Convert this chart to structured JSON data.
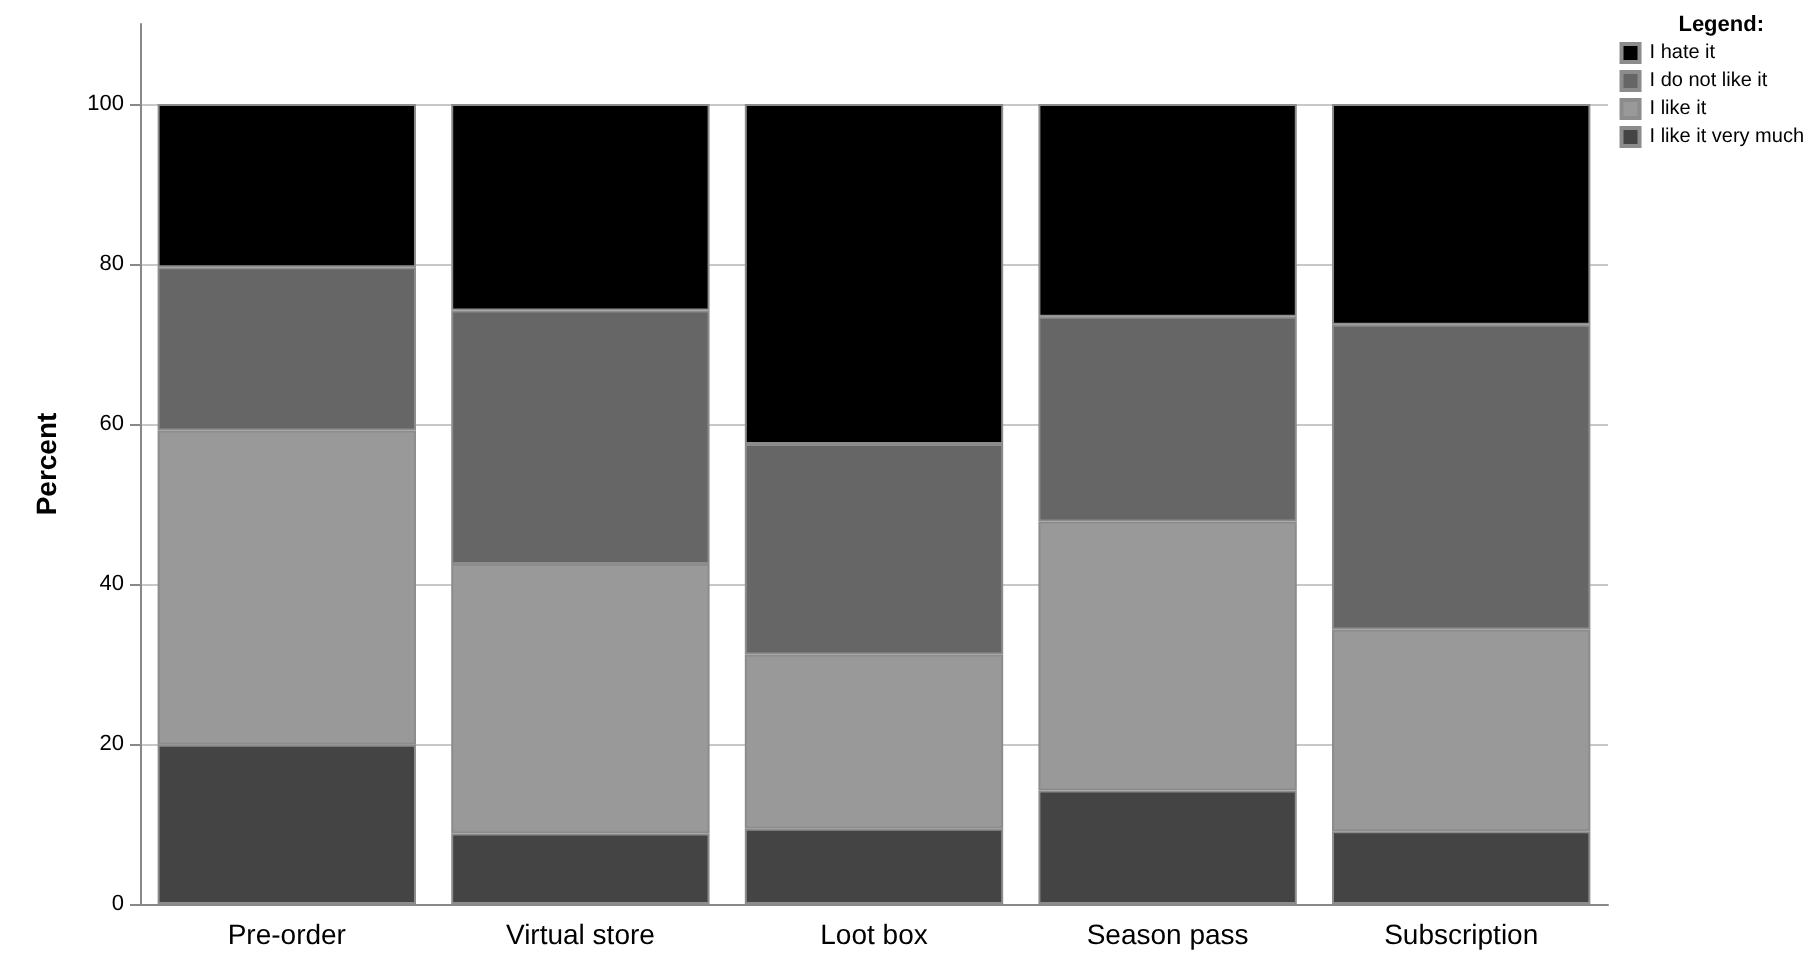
{
  "chart_data": {
    "type": "bar",
    "stacked": true,
    "ylabel": "Percent",
    "legend_title": "Legend:",
    "legend": "top right",
    "categories": [
      "Pre-order",
      "Virtual store",
      "Loot box",
      "Season pass",
      "Subscription"
    ],
    "series": [
      {
        "name": "I like it very much",
        "color": "#444444",
        "values": [
          19.9,
          8.8,
          9.4,
          14.2,
          9.1
        ]
      },
      {
        "name": "I like it",
        "color": "#999999",
        "values": [
          39.3,
          33.7,
          21.8,
          33.6,
          25.2
        ]
      },
      {
        "name": "I do not like it",
        "color": "#666666",
        "values": [
          20.4,
          31.7,
          26.3,
          25.6,
          38.1
        ]
      },
      {
        "name": "I hate it",
        "color": "#000000",
        "values": [
          20.4,
          25.8,
          42.5,
          26.6,
          27.6
        ]
      }
    ],
    "ylim": [
      0,
      110
    ],
    "yticks": [
      0,
      20,
      40,
      60,
      80,
      100
    ],
    "grid": "y"
  }
}
